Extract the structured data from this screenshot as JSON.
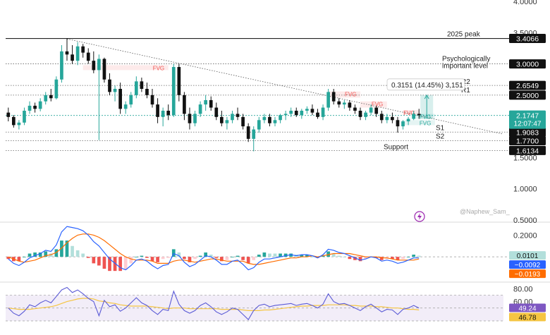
{
  "chart_data": {
    "type": "candlestick",
    "colors": {
      "up": "#26a69a",
      "down": "#111111",
      "fvg_bear": "#ef5350",
      "fvg_bull": "#26a69a",
      "macd_line": "#2962ff",
      "signal_line": "#ff6d00",
      "rsi_line": "#5b5bd6",
      "rsi_ma": "#f5c542",
      "rsi_band": "#ede7f6",
      "price_badge": "#26a69a"
    },
    "price_axis": {
      "ticks": [
        {
          "value": 4.0,
          "label": "4.0000"
        },
        {
          "value": 3.5,
          "label": "3.5000"
        },
        {
          "value": 1.5,
          "label": "1.5000"
        },
        {
          "value": 1.0,
          "label": "1.0000"
        },
        {
          "value": 0.5,
          "label": "0.5000"
        }
      ],
      "range": [
        0.5,
        4.0
      ]
    },
    "levels": [
      {
        "value": 3.4066,
        "label": "3.4066",
        "annotation": "2025 peak",
        "style": "solid"
      },
      {
        "value": 3.0,
        "label": "3.0000",
        "annotation": "Psychologically important level",
        "style": "dotted"
      },
      {
        "value": 2.6549,
        "label": "2.6549",
        "annotation": "R2",
        "style": "dotted"
      },
      {
        "value": 2.5,
        "label": "2.5000",
        "annotation": "R1",
        "style": "dotted"
      },
      {
        "value": 1.9083,
        "label": "1.9083",
        "annotation": "S1",
        "style": "dotted"
      },
      {
        "value": 1.77,
        "label": "1.7700",
        "annotation": "S2",
        "style": "dotted"
      },
      {
        "value": 1.6134,
        "label": "1.6134",
        "annotation": "Support",
        "style": "dotted"
      }
    ],
    "current_price": {
      "value": 2.1747,
      "label": "2.1747",
      "countdown": "12:07:47"
    },
    "measure_label": "0.3151 (14.45%) 3,151",
    "fvg_labels": [
      "FVG",
      "FVG",
      "FVG",
      "FVG",
      "FVG",
      "FVG"
    ],
    "watermark": "@Naphew_Sam_",
    "candles": [
      [
        2.22,
        2.3,
        2.08,
        2.15
      ],
      [
        2.15,
        2.18,
        1.98,
        2.02
      ],
      [
        2.02,
        2.1,
        1.95,
        2.06
      ],
      [
        2.06,
        2.3,
        2.02,
        2.25
      ],
      [
        2.25,
        2.4,
        2.2,
        2.33
      ],
      [
        2.33,
        2.38,
        2.22,
        2.28
      ],
      [
        2.28,
        2.45,
        2.24,
        2.4
      ],
      [
        2.4,
        2.55,
        2.35,
        2.5
      ],
      [
        2.5,
        2.6,
        2.4,
        2.45
      ],
      [
        2.45,
        2.8,
        2.43,
        2.75
      ],
      [
        2.75,
        3.3,
        2.7,
        3.2
      ],
      [
        3.2,
        3.41,
        3.05,
        3.15
      ],
      [
        3.15,
        3.3,
        3.0,
        3.05
      ],
      [
        3.05,
        3.35,
        2.98,
        3.28
      ],
      [
        3.28,
        3.32,
        3.1,
        3.18
      ],
      [
        3.18,
        3.25,
        3.0,
        3.05
      ],
      [
        3.05,
        3.2,
        2.85,
        2.9
      ],
      [
        2.9,
        3.15,
        1.78,
        3.08
      ],
      [
        3.08,
        3.1,
        2.7,
        2.75
      ],
      [
        2.75,
        2.85,
        2.5,
        2.55
      ],
      [
        2.55,
        2.65,
        2.4,
        2.6
      ],
      [
        2.6,
        2.7,
        2.2,
        2.28
      ],
      [
        2.28,
        2.4,
        2.2,
        2.35
      ],
      [
        2.35,
        2.55,
        2.3,
        2.5
      ],
      [
        2.5,
        2.8,
        2.45,
        2.72
      ],
      [
        2.72,
        2.78,
        2.55,
        2.6
      ],
      [
        2.6,
        2.7,
        2.45,
        2.5
      ],
      [
        2.5,
        2.6,
        2.3,
        2.35
      ],
      [
        2.35,
        2.45,
        2.05,
        2.15
      ],
      [
        2.15,
        2.3,
        2.0,
        2.25
      ],
      [
        2.25,
        2.35,
        2.1,
        2.18
      ],
      [
        2.18,
        3.0,
        2.15,
        2.95
      ],
      [
        2.95,
        3.0,
        2.4,
        2.5
      ],
      [
        2.5,
        2.55,
        2.1,
        2.2
      ],
      [
        2.2,
        2.3,
        1.95,
        2.05
      ],
      [
        2.05,
        2.25,
        2.0,
        2.2
      ],
      [
        2.2,
        2.4,
        2.15,
        2.35
      ],
      [
        2.35,
        2.5,
        2.25,
        2.42
      ],
      [
        2.42,
        2.48,
        2.25,
        2.3
      ],
      [
        2.3,
        2.38,
        2.1,
        2.15
      ],
      [
        2.15,
        2.25,
        2.0,
        2.05
      ],
      [
        2.05,
        2.15,
        1.95,
        2.1
      ],
      [
        2.1,
        2.25,
        2.05,
        2.2
      ],
      [
        2.2,
        2.3,
        2.1,
        2.15
      ],
      [
        2.15,
        2.2,
        1.95,
        2.0
      ],
      [
        2.0,
        2.05,
        1.75,
        1.8
      ],
      [
        1.8,
        2.0,
        1.6,
        1.95
      ],
      [
        1.95,
        2.15,
        1.9,
        2.1
      ],
      [
        2.1,
        2.2,
        2.05,
        2.15
      ],
      [
        2.15,
        2.2,
        2.0,
        2.05
      ],
      [
        2.05,
        2.15,
        2.0,
        2.1
      ],
      [
        2.1,
        2.2,
        2.05,
        2.18
      ],
      [
        2.18,
        2.25,
        2.1,
        2.2
      ],
      [
        2.2,
        2.3,
        2.15,
        2.25
      ],
      [
        2.25,
        2.3,
        2.15,
        2.18
      ],
      [
        2.18,
        2.28,
        2.12,
        2.25
      ],
      [
        2.25,
        2.32,
        2.2,
        2.28
      ],
      [
        2.28,
        2.35,
        2.18,
        2.22
      ],
      [
        2.22,
        2.28,
        2.12,
        2.15
      ],
      [
        2.15,
        2.35,
        2.1,
        2.3
      ],
      [
        2.3,
        2.6,
        2.25,
        2.55
      ],
      [
        2.55,
        2.6,
        2.35,
        2.4
      ],
      [
        2.4,
        2.45,
        2.3,
        2.35
      ],
      [
        2.35,
        2.42,
        2.28,
        2.38
      ],
      [
        2.38,
        2.42,
        2.25,
        2.3
      ],
      [
        2.3,
        2.35,
        2.2,
        2.25
      ],
      [
        2.25,
        2.3,
        2.1,
        2.15
      ],
      [
        2.15,
        2.25,
        2.1,
        2.22
      ],
      [
        2.22,
        2.35,
        2.18,
        2.3
      ],
      [
        2.3,
        2.33,
        2.15,
        2.2
      ],
      [
        2.2,
        2.25,
        2.05,
        2.1
      ],
      [
        2.1,
        2.2,
        2.05,
        2.15
      ],
      [
        2.15,
        2.22,
        2.05,
        2.1
      ],
      [
        2.1,
        2.15,
        1.9,
        2.0
      ],
      [
        2.0,
        2.1,
        1.95,
        2.08
      ],
      [
        2.08,
        2.15,
        2.02,
        2.12
      ],
      [
        2.12,
        2.25,
        2.1,
        2.2
      ],
      [
        2.2,
        2.28,
        2.12,
        2.18
      ]
    ],
    "macd": {
      "axis_ticks": [
        {
          "value": 0.2,
          "label": "0.2000"
        }
      ],
      "range": [
        -0.22,
        0.3
      ],
      "hist_value": {
        "value": 0.0101,
        "label": "0.0101"
      },
      "macd_value": {
        "value": -0.0092,
        "label": "−0.0092"
      },
      "signal_value": {
        "value": -0.0193,
        "label": "−0.0193"
      },
      "macd_line": [
        -0.02,
        -0.06,
        -0.08,
        -0.05,
        -0.01,
        0.01,
        0.03,
        0.06,
        0.05,
        0.11,
        0.23,
        0.28,
        0.27,
        0.26,
        0.24,
        0.2,
        0.14,
        0.1,
        0.04,
        -0.02,
        -0.06,
        -0.1,
        -0.12,
        -0.08,
        -0.03,
        -0.02,
        -0.04,
        -0.08,
        -0.11,
        -0.08,
        -0.07,
        0.03,
        0.01,
        -0.05,
        -0.09,
        -0.07,
        -0.03,
        0.01,
        0.0,
        -0.03,
        -0.07,
        -0.07,
        -0.04,
        -0.03,
        -0.07,
        -0.12,
        -0.1,
        -0.05,
        -0.02,
        -0.02,
        -0.01,
        0.0,
        0.01,
        0.02,
        0.01,
        0.02,
        0.02,
        0.01,
        -0.01,
        0.02,
        0.07,
        0.06,
        0.04,
        0.03,
        0.01,
        -0.01,
        -0.03,
        -0.02,
        0.0,
        -0.01,
        -0.04,
        -0.03,
        -0.04,
        -0.06,
        -0.05,
        -0.03,
        -0.01,
        -0.01
      ],
      "signal_line": [
        0.0,
        -0.02,
        -0.04,
        -0.05,
        -0.04,
        -0.03,
        -0.01,
        0.01,
        0.02,
        0.04,
        0.08,
        0.13,
        0.17,
        0.2,
        0.21,
        0.21,
        0.2,
        0.18,
        0.15,
        0.11,
        0.07,
        0.03,
        0.0,
        -0.02,
        -0.03,
        -0.03,
        -0.03,
        -0.04,
        -0.06,
        -0.06,
        -0.06,
        -0.04,
        -0.03,
        -0.03,
        -0.04,
        -0.05,
        -0.04,
        -0.03,
        -0.02,
        -0.02,
        -0.03,
        -0.04,
        -0.04,
        -0.04,
        -0.04,
        -0.06,
        -0.07,
        -0.07,
        -0.06,
        -0.05,
        -0.04,
        -0.03,
        -0.02,
        -0.01,
        -0.01,
        0.0,
        0.0,
        0.01,
        0.0,
        0.01,
        0.02,
        0.03,
        0.03,
        0.03,
        0.03,
        0.02,
        0.01,
        0.0,
        0.0,
        0.0,
        -0.01,
        -0.01,
        -0.02,
        -0.03,
        -0.03,
        -0.03,
        -0.03,
        -0.02
      ]
    },
    "rsi": {
      "axis_ticks": [
        {
          "value": 80,
          "label": "80.00"
        },
        {
          "value": 60,
          "label": "60.00"
        }
      ],
      "range": [
        18,
        88
      ],
      "band": [
        30,
        70
      ],
      "rsi_value": {
        "value": 49.24,
        "label": "49.24"
      },
      "ma_value": {
        "value": 46.78,
        "label": "46.78"
      },
      "rsi_line": [
        50,
        42,
        38,
        45,
        55,
        52,
        58,
        62,
        58,
        68,
        78,
        82,
        74,
        78,
        72,
        65,
        60,
        38,
        62,
        52,
        55,
        45,
        50,
        58,
        66,
        58,
        54,
        46,
        40,
        48,
        46,
        76,
        56,
        46,
        42,
        46,
        54,
        58,
        52,
        44,
        40,
        44,
        50,
        48,
        40,
        32,
        46,
        54,
        56,
        52,
        54,
        55,
        56,
        57,
        54,
        56,
        57,
        54,
        50,
        56,
        72,
        60,
        56,
        57,
        54,
        50,
        46,
        52,
        56,
        50,
        44,
        48,
        47,
        40,
        48,
        50,
        54,
        50
      ],
      "ma_line": [
        50,
        49,
        48,
        48,
        48,
        49,
        50,
        51,
        52,
        54,
        57,
        60,
        62,
        64,
        65,
        65,
        64,
        61,
        60,
        58,
        57,
        55,
        54,
        53,
        53,
        53,
        53,
        52,
        51,
        50,
        49,
        50,
        50,
        50,
        49,
        49,
        49,
        49,
        49,
        49,
        48,
        48,
        48,
        48,
        47,
        46,
        46,
        46,
        47,
        47,
        48,
        49,
        50,
        51,
        52,
        53,
        53,
        54,
        54,
        54,
        55,
        55,
        55,
        55,
        54,
        54,
        53,
        53,
        53,
        52,
        52,
        51,
        50,
        50,
        49,
        48,
        48,
        47
      ]
    }
  }
}
